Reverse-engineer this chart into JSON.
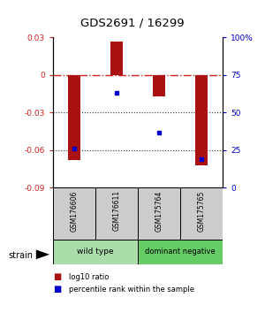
{
  "title": "GDS2691 / 16299",
  "samples": [
    "GSM176606",
    "GSM176611",
    "GSM175764",
    "GSM175765"
  ],
  "log10_ratio": [
    -0.068,
    0.027,
    -0.017,
    -0.072
  ],
  "percentile_rank": [
    26.0,
    63.0,
    37.0,
    19.0
  ],
  "ylim_left": [
    -0.09,
    0.03
  ],
  "ylim_right": [
    0,
    100
  ],
  "yticks_left": [
    -0.09,
    -0.06,
    -0.03,
    0.0,
    0.03
  ],
  "ytick_labels_left": [
    "-0.09",
    "-0.06",
    "-0.03",
    "0",
    "0.03"
  ],
  "yticks_right": [
    0,
    25,
    50,
    75,
    100
  ],
  "ytick_labels_right": [
    "0",
    "25",
    "50",
    "75",
    "100%"
  ],
  "bar_color": "#aa1111",
  "dot_color": "#0000cc",
  "group_wt_color": "#aaddaa",
  "group_dn_color": "#66cc66",
  "group_label": "strain",
  "legend_bar_label": "log10 ratio",
  "legend_dot_label": "percentile rank within the sample",
  "hline_color": "#cc2222",
  "dotted_line_color": "#333333",
  "sample_box_color": "#cccccc",
  "bar_width": 0.3
}
